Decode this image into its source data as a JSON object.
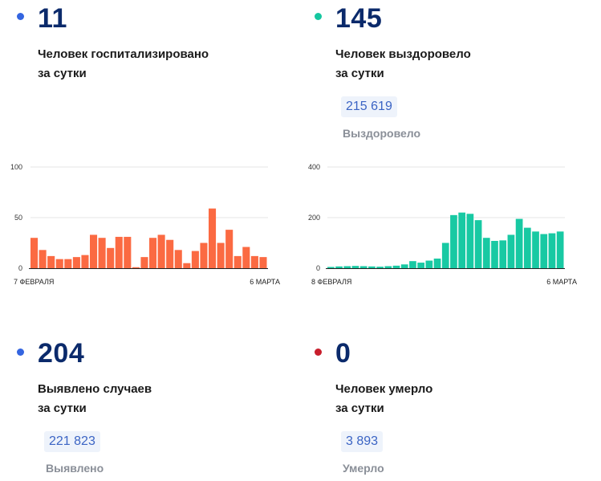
{
  "stats": {
    "hospitalized": {
      "value": "11",
      "line1": "Человек госпитализировано",
      "line2": "за сутки",
      "dot_color": "#3465e0"
    },
    "recovered": {
      "value": "145",
      "line1": "Человек выздоровело",
      "line2": "за сутки",
      "total": "215 619",
      "total_label": "Выздоровело",
      "dot_color": "#15c7a0"
    },
    "detected": {
      "value": "204",
      "line1": "Выявлено случаев",
      "line2": "за сутки",
      "total": "221 823",
      "total_label": "Выявлено",
      "dot_color": "#3465e0"
    },
    "died": {
      "value": "0",
      "line1": "Человек умерло",
      "line2": "за сутки",
      "total": "3 893",
      "total_label": "Умерло",
      "dot_color": "#c81e2c"
    }
  },
  "chart_data": [
    {
      "type": "bar",
      "color": "#fb6a42",
      "x_start_label": "7 ФЕВРАЛЯ",
      "x_end_label": "6 МАРТА",
      "yticks": [
        "0",
        "50",
        "100"
      ],
      "ylim": [
        0,
        100
      ],
      "grid": true,
      "values": [
        30,
        18,
        12,
        9,
        9,
        11,
        13,
        33,
        30,
        20,
        31,
        31,
        1,
        11,
        30,
        33,
        28,
        18,
        5,
        17,
        25,
        59,
        25,
        38,
        12,
        21,
        12,
        11
      ]
    },
    {
      "type": "bar",
      "color": "#18c9a3",
      "x_start_label": "8 ФЕВРАЛЯ",
      "x_end_label": "6 МАРТА",
      "yticks": [
        "0",
        "200",
        "400"
      ],
      "ylim": [
        0,
        400
      ],
      "grid": true,
      "values": [
        5,
        7,
        8,
        9,
        8,
        7,
        6,
        8,
        10,
        15,
        28,
        22,
        30,
        38,
        100,
        210,
        220,
        215,
        190,
        120,
        108,
        110,
        132,
        195,
        160,
        145,
        135,
        138,
        145
      ]
    }
  ]
}
